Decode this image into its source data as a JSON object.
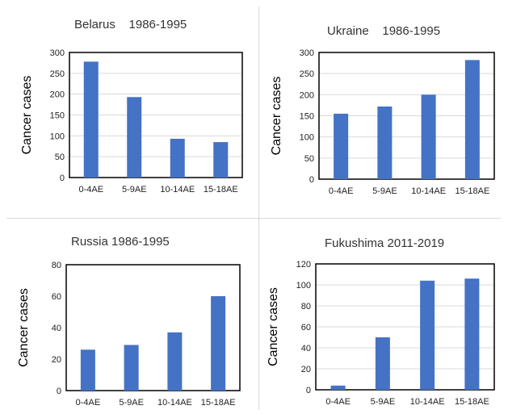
{
  "chart_data": [
    {
      "type": "bar",
      "title": "Belarus    1986-1995",
      "ylabel": "Cancer cases",
      "xlabel": "",
      "categories": [
        "0-4AE",
        "5-9AE",
        "10-14AE",
        "15-18AE"
      ],
      "values": [
        278,
        193,
        93,
        85
      ],
      "ylim": [
        0,
        300
      ],
      "yticks": [
        0,
        50,
        100,
        150,
        200,
        250,
        300
      ],
      "grid": true,
      "color": "#4472C4"
    },
    {
      "type": "bar",
      "title": "Ukraine    1986-1995",
      "ylabel": "Cancer cases",
      "xlabel": "",
      "categories": [
        "0-4AE",
        "5-9AE",
        "10-14AE",
        "15-18AE"
      ],
      "values": [
        155,
        172,
        200,
        282
      ],
      "ylim": [
        0,
        300
      ],
      "yticks": [
        0,
        50,
        100,
        150,
        200,
        250,
        300
      ],
      "grid": true,
      "color": "#4472C4"
    },
    {
      "type": "bar",
      "title": "Russia 1986-1995",
      "ylabel": "Cancer cases",
      "xlabel": "",
      "categories": [
        "0-4AE",
        "5-9AE",
        "10-14AE",
        "15-18AE"
      ],
      "values": [
        26,
        29,
        37,
        60
      ],
      "ylim": [
        0,
        80
      ],
      "yticks": [
        0,
        20,
        40,
        60,
        80
      ],
      "grid": false,
      "color": "#4472C4"
    },
    {
      "type": "bar",
      "title": "Fukushima 2011-2019",
      "ylabel": "Cancer cases",
      "xlabel": "",
      "categories": [
        "0-4AE",
        "5-9AE",
        "10-14AE",
        "15-18AE"
      ],
      "values": [
        4,
        50,
        104,
        106
      ],
      "ylim": [
        0,
        120
      ],
      "yticks": [
        0,
        20,
        40,
        60,
        80,
        100,
        120
      ],
      "grid": true,
      "color": "#4472C4"
    }
  ]
}
